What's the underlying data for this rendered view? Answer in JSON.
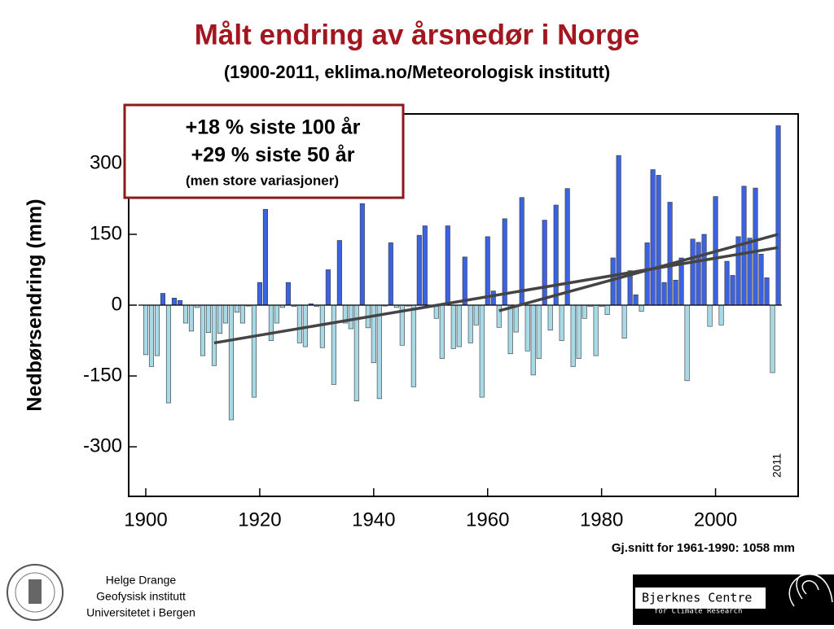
{
  "chart_data": {
    "type": "bar",
    "title": "Målt endring av årsnedør i Norge",
    "subtitle": "(1900-2011, eklima.no/Meteorologisk institutt)",
    "ylabel": "Nedbørsendring (mm)",
    "annotations": [
      "+18 % siste 100 år",
      "+29 % siste 50 år",
      "(men store variasjoner)"
    ],
    "end_label": "2011",
    "footnote": "Gj.snitt for 1961-1990: 1058 mm",
    "x": [
      1900,
      1901,
      1902,
      1903,
      1904,
      1905,
      1906,
      1907,
      1908,
      1909,
      1910,
      1911,
      1912,
      1913,
      1914,
      1915,
      1916,
      1917,
      1918,
      1919,
      1920,
      1921,
      1922,
      1923,
      1924,
      1925,
      1926,
      1927,
      1928,
      1929,
      1930,
      1931,
      1932,
      1933,
      1934,
      1935,
      1936,
      1937,
      1938,
      1939,
      1940,
      1941,
      1942,
      1943,
      1944,
      1945,
      1946,
      1947,
      1948,
      1949,
      1950,
      1951,
      1952,
      1953,
      1954,
      1955,
      1956,
      1957,
      1958,
      1959,
      1960,
      1961,
      1962,
      1963,
      1964,
      1965,
      1966,
      1967,
      1968,
      1969,
      1970,
      1971,
      1972,
      1973,
      1974,
      1975,
      1976,
      1977,
      1978,
      1979,
      1980,
      1981,
      1982,
      1983,
      1984,
      1985,
      1986,
      1987,
      1988,
      1989,
      1990,
      1991,
      1992,
      1993,
      1994,
      1995,
      1996,
      1997,
      1998,
      1999,
      2000,
      2001,
      2002,
      2003,
      2004,
      2005,
      2006,
      2007,
      2008,
      2009,
      2010,
      2011
    ],
    "values": [
      -105,
      -130,
      -107,
      25,
      -207,
      15,
      10,
      -38,
      -55,
      -5,
      -107,
      -58,
      -128,
      -60,
      -38,
      -243,
      -15,
      -38,
      -2,
      -195,
      48,
      203,
      -75,
      -38,
      -5,
      48,
      -3,
      -80,
      -88,
      3,
      -3,
      -90,
      75,
      -168,
      137,
      -38,
      -50,
      -203,
      215,
      -48,
      -122,
      -198,
      -2,
      132,
      -5,
      -85,
      -2,
      -173,
      148,
      168,
      -3,
      -28,
      -113,
      168,
      -92,
      -88,
      102,
      -80,
      -42,
      -195,
      145,
      30,
      -47,
      183,
      -103,
      -57,
      228,
      -97,
      -148,
      -113,
      180,
      -53,
      212,
      -75,
      247,
      -130,
      -113,
      -28,
      -3,
      -107,
      -3,
      -20,
      100,
      317,
      -70,
      73,
      22,
      -13,
      132,
      287,
      275,
      48,
      218,
      53,
      100,
      -160,
      140,
      133,
      150,
      -45,
      230,
      -42,
      93,
      63,
      145,
      252,
      142,
      248,
      108,
      58,
      -143,
      380
    ],
    "colors": {
      "positive": "#3b62e0",
      "negative": "#a8d9e6"
    },
    "trend_lines": [
      {
        "x": [
          1912,
          2011
        ],
        "values": [
          -80,
          122
        ]
      },
      {
        "x": [
          1962,
          2011
        ],
        "values": [
          -12,
          150
        ]
      }
    ],
    "xlim": [
      1897,
      2014.5
    ],
    "ylim": [
      -405,
      405
    ],
    "xticks": [
      1900,
      1920,
      1940,
      1960,
      1980,
      2000
    ],
    "yticks": [
      -300,
      -150,
      0,
      150,
      300
    ]
  },
  "footer": {
    "author": [
      "Helge Drange",
      "Geofysisk institutt",
      "Universitetet i Bergen"
    ],
    "logo": [
      "Bjerknes Centre",
      "for Climate Research"
    ]
  }
}
